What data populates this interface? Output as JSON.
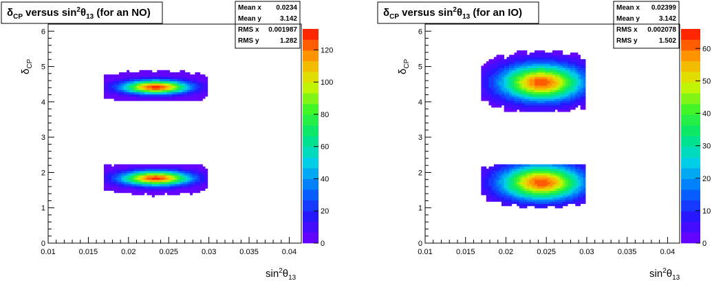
{
  "chart_data": [
    {
      "type": "heatmap",
      "title_parts": {
        "a": "δ",
        "a_sub": "CP",
        "b": " versus sin",
        "b_sup": "2",
        "c": "θ",
        "c_sub": "13",
        "d": " (for an NO)"
      },
      "xlabel_parts": {
        "a": "sin",
        "sup": "2",
        "b": "θ",
        "sub": "13"
      },
      "ylabel_parts": {
        "a": "δ",
        "sub": "CP"
      },
      "xlim": [
        0.01,
        0.0415
      ],
      "ylim": [
        0,
        6.2
      ],
      "x_ticks": [
        {
          "v": 0.01,
          "label": "0.01"
        },
        {
          "v": 0.015,
          "label": "0.015"
        },
        {
          "v": 0.02,
          "label": "0.02"
        },
        {
          "v": 0.025,
          "label": "0.025"
        },
        {
          "v": 0.03,
          "label": "0.03"
        },
        {
          "v": 0.035,
          "label": "0.035"
        },
        {
          "v": 0.04,
          "label": "0.04"
        }
      ],
      "y_ticks": [
        {
          "v": 0,
          "label": "0"
        },
        {
          "v": 1,
          "label": "1"
        },
        {
          "v": 2,
          "label": "2"
        },
        {
          "v": 3,
          "label": "3"
        },
        {
          "v": 4,
          "label": "4"
        },
        {
          "v": 5,
          "label": "5"
        },
        {
          "v": 6,
          "label": "6"
        }
      ],
      "z_max": 133,
      "z_ticks": [
        {
          "v": 0,
          "label": "0"
        },
        {
          "v": 20,
          "label": "20"
        },
        {
          "v": 40,
          "label": "40"
        },
        {
          "v": 60,
          "label": "60"
        },
        {
          "v": 80,
          "label": "80"
        },
        {
          "v": 100,
          "label": "100"
        },
        {
          "v": 120,
          "label": "120"
        }
      ],
      "stats": [
        {
          "label": "Mean x",
          "value": "0.0234"
        },
        {
          "label": "Mean y",
          "value": "3.142"
        },
        {
          "label": "RMS x",
          "value": "0.001987"
        },
        {
          "label": "RMS y",
          "value": "1.282"
        }
      ],
      "clusters": [
        {
          "cx": 0.0234,
          "cy": 4.42,
          "sx": 0.0028,
          "sy": 0.13,
          "peak": 130,
          "x_min": 0.0168,
          "x_max": 0.0298,
          "y_min": 4.05,
          "y_max": 4.95
        },
        {
          "cx": 0.0234,
          "cy": 1.84,
          "sx": 0.0029,
          "sy": 0.14,
          "peak": 128,
          "x_min": 0.0168,
          "x_max": 0.0297,
          "y_min": 1.3,
          "y_max": 2.25
        }
      ]
    },
    {
      "type": "heatmap",
      "title_parts": {
        "a": "δ",
        "a_sub": "CP",
        "b": " versus sin",
        "b_sup": "2",
        "c": "θ",
        "c_sub": "13",
        "d": " (for an IO)"
      },
      "xlabel_parts": {
        "a": "sin",
        "sup": "2",
        "b": "θ",
        "sub": "13"
      },
      "ylabel_parts": {
        "a": "δ",
        "sub": "CP"
      },
      "xlim": [
        0.01,
        0.0415
      ],
      "ylim": [
        0,
        6.2
      ],
      "x_ticks": [
        {
          "v": 0.01,
          "label": "0.01"
        },
        {
          "v": 0.015,
          "label": "0.015"
        },
        {
          "v": 0.02,
          "label": "0.02"
        },
        {
          "v": 0.025,
          "label": "0.025"
        },
        {
          "v": 0.03,
          "label": "0.03"
        },
        {
          "v": 0.035,
          "label": "0.035"
        },
        {
          "v": 0.04,
          "label": "0.04"
        }
      ],
      "y_ticks": [
        {
          "v": 0,
          "label": "0"
        },
        {
          "v": 1,
          "label": "1"
        },
        {
          "v": 2,
          "label": "2"
        },
        {
          "v": 3,
          "label": "3"
        },
        {
          "v": 4,
          "label": "4"
        },
        {
          "v": 5,
          "label": "5"
        },
        {
          "v": 6,
          "label": "6"
        }
      ],
      "z_max": 66,
      "z_ticks": [
        {
          "v": 0,
          "label": "0"
        },
        {
          "v": 10,
          "label": "10"
        },
        {
          "v": 20,
          "label": "20"
        },
        {
          "v": 30,
          "label": "30"
        },
        {
          "v": 40,
          "label": "40"
        },
        {
          "v": 50,
          "label": "50"
        },
        {
          "v": 60,
          "label": "60"
        }
      ],
      "stats": [
        {
          "label": "Mean x",
          "value": "0.02399"
        },
        {
          "label": "Mean y",
          "value": "3.142"
        },
        {
          "label": "RMS x",
          "value": "0.002078"
        },
        {
          "label": "RMS y",
          "value": "1.502"
        }
      ],
      "clusters": [
        {
          "cx": 0.0244,
          "cy": 4.55,
          "sx": 0.0034,
          "sy": 0.34,
          "peak": 62,
          "x_min": 0.017,
          "x_max": 0.0299,
          "y_min": 3.7,
          "y_max": 5.45
        },
        {
          "cx": 0.0244,
          "cy": 1.72,
          "sx": 0.0034,
          "sy": 0.33,
          "peak": 62,
          "x_min": 0.017,
          "x_max": 0.0299,
          "y_min": 0.85,
          "y_max": 2.25
        }
      ]
    }
  ]
}
